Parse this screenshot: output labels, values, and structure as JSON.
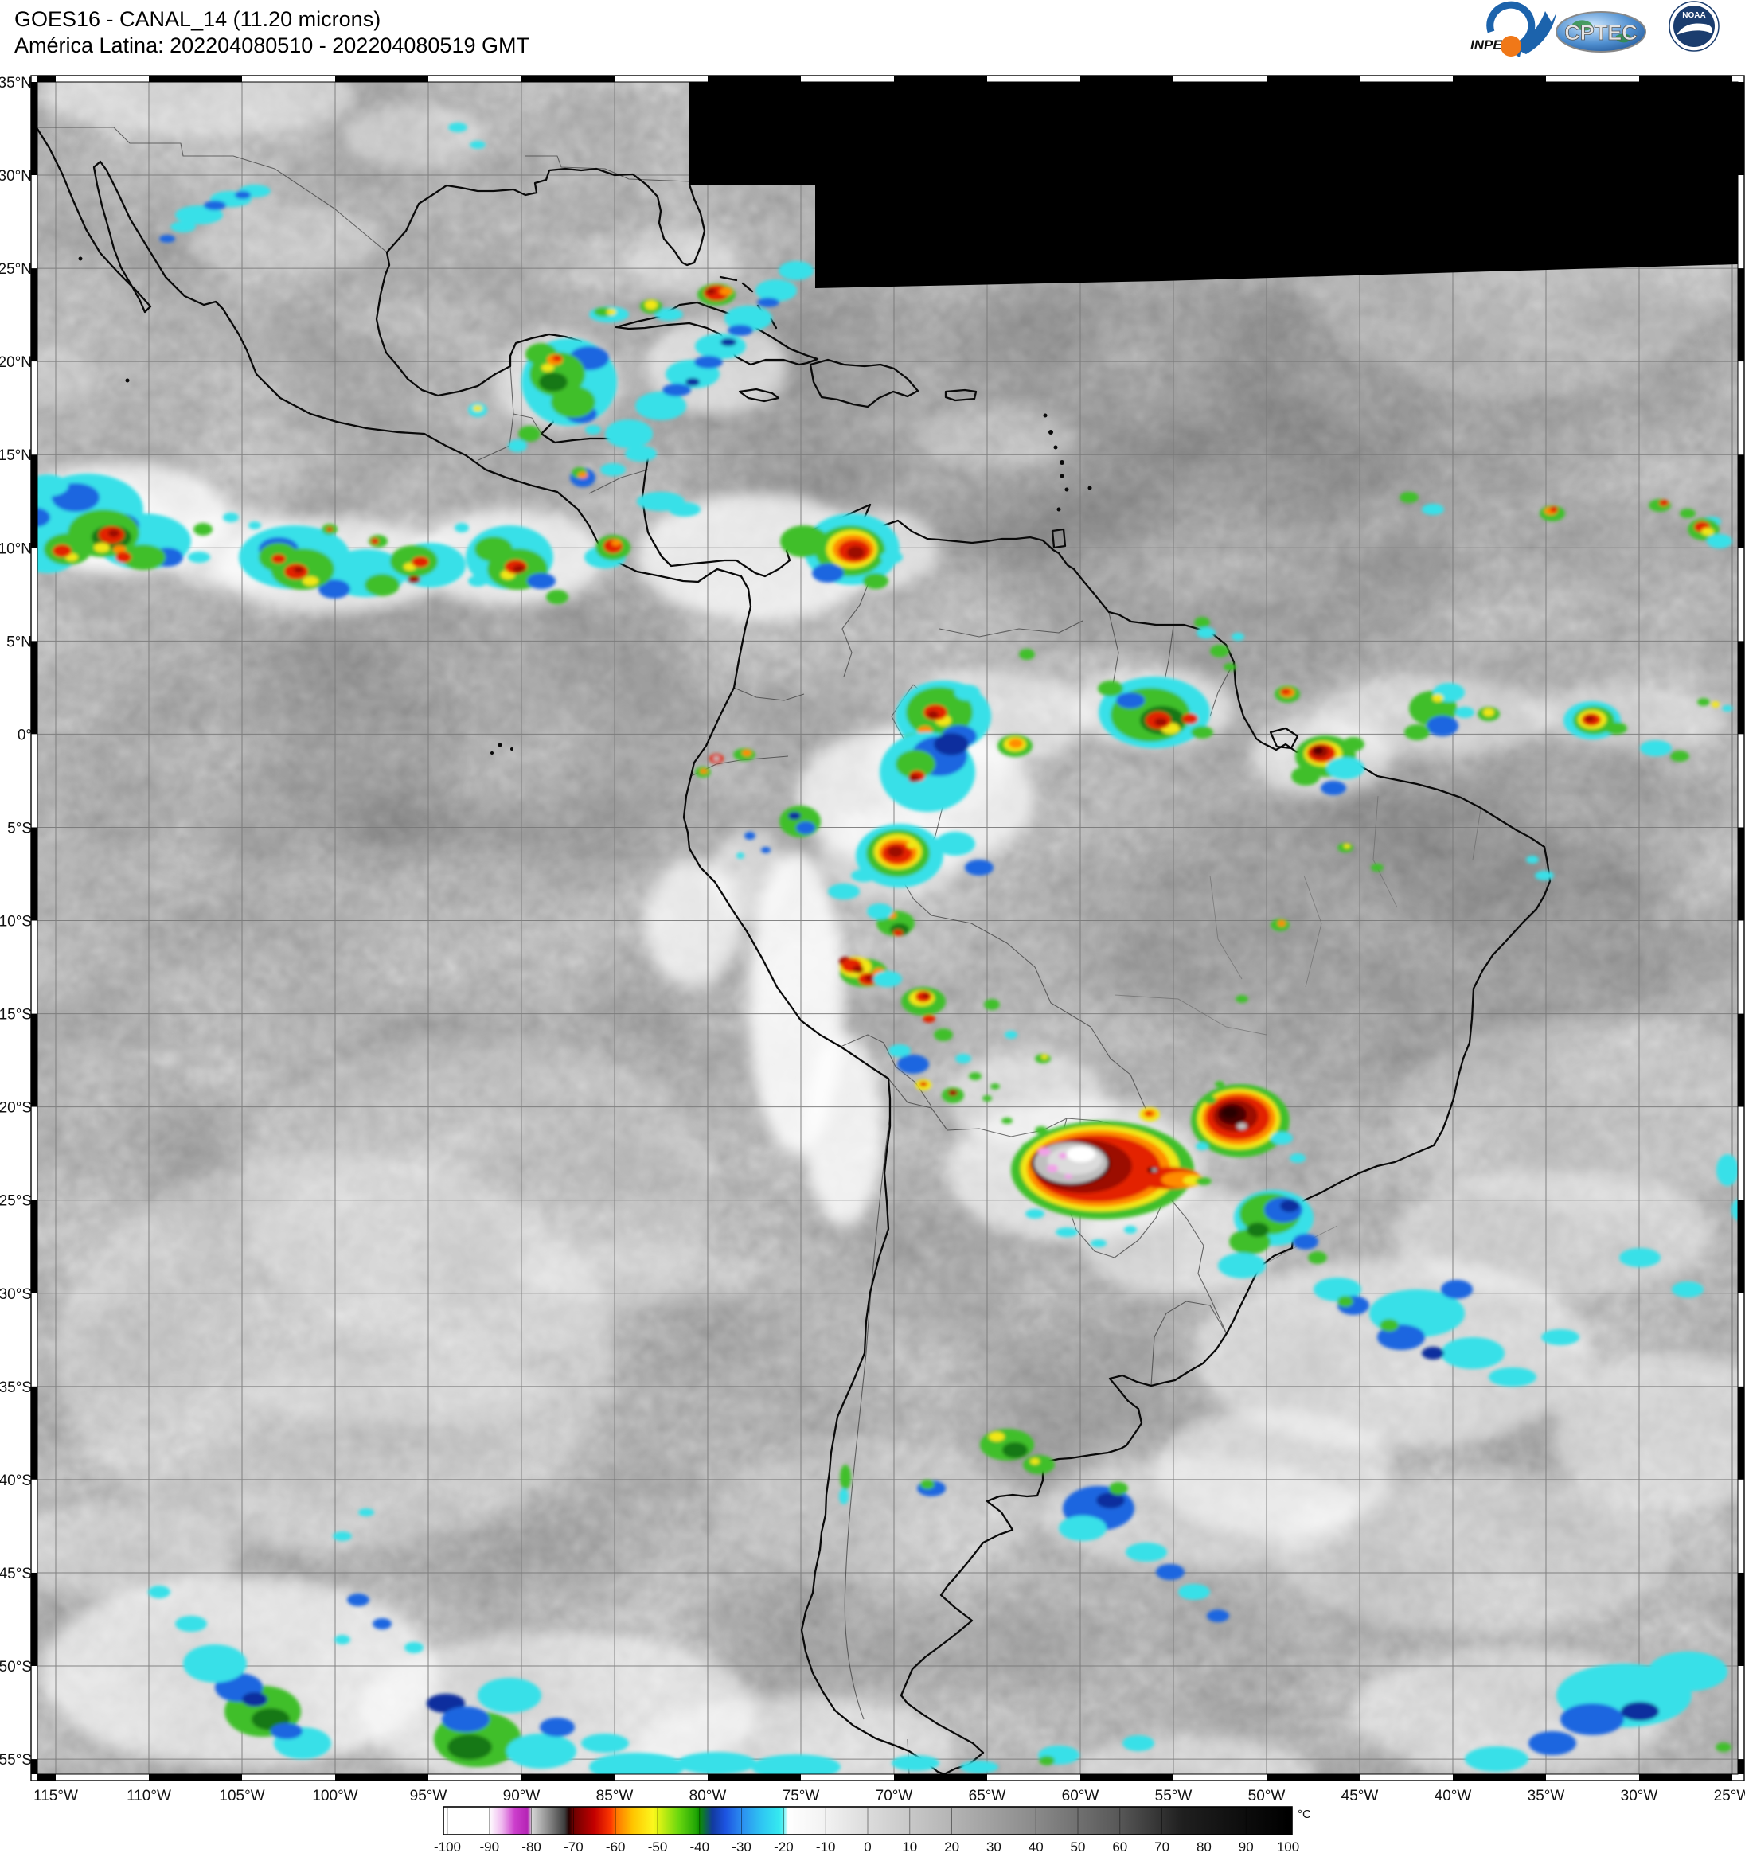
{
  "header": {
    "title_line1": "GOES16 - CANAL_14 (11.20 microns)",
    "title_line2": "América Latina: 202204080510 - 202204080519 GMT"
  },
  "logos": {
    "inpe_label": "INPE",
    "cptec_label": "CPTEC",
    "noaa_label": "NOAA"
  },
  "map": {
    "lat_labels": [
      "35°N",
      "30°N",
      "25°N",
      "20°N",
      "15°N",
      "10°N",
      "5°N",
      "0°",
      "5°S",
      "10°S",
      "15°S",
      "20°S",
      "25°S",
      "30°S",
      "35°S",
      "40°S",
      "45°S",
      "50°S",
      "55°S"
    ],
    "lon_labels": [
      "115°W",
      "110°W",
      "105°W",
      "100°W",
      "95°W",
      "90°W",
      "85°W",
      "80°W",
      "75°W",
      "70°W",
      "65°W",
      "60°W",
      "55°W",
      "50°W",
      "45°W",
      "40°W",
      "35°W",
      "30°W",
      "25°W"
    ]
  },
  "colorbar": {
    "unit": "°C",
    "tick_labels": [
      "-100",
      "-90",
      "-80",
      "-70",
      "-60",
      "-50",
      "-40",
      "-30",
      "-20",
      "-10",
      "0",
      "10",
      "20",
      "30",
      "40",
      "50",
      "60",
      "70",
      "80",
      "90",
      "100"
    ]
  },
  "colors": {
    "accent_blue": "#1C63AC",
    "accent_orange": "#F07818",
    "noaa_navy": "#1B3D6E",
    "storm_red": "#E32400",
    "storm_green": "#3FBF2A",
    "storm_cyan": "#39E0E8"
  }
}
